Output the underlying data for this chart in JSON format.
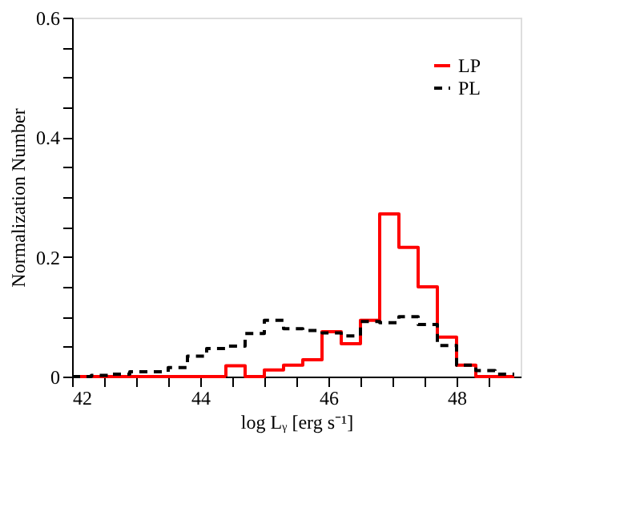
{
  "chart_data": {
    "type": "histogram",
    "xlabel": "log Lᵧ [erg s⁻¹]",
    "ylabel": "Normalization Number",
    "bins": [
      42.0,
      42.3,
      42.6,
      42.9,
      43.2,
      43.5,
      43.8,
      44.1,
      44.4,
      44.7,
      45.0,
      45.3,
      45.6,
      45.9,
      46.2,
      46.5,
      46.8,
      47.1,
      47.4,
      47.7,
      48.0,
      48.3,
      48.6,
      48.9
    ],
    "series": [
      {
        "name": "LP",
        "color": "#ff0000",
        "line_style": "solid",
        "values": [
          0,
          0,
          0,
          0,
          0,
          0,
          0,
          0,
          0.018,
          0,
          0.011,
          0.019,
          0.028,
          0.075,
          0.055,
          0.094,
          0.272,
          0.216,
          0.15,
          0.066,
          0.019,
          0,
          0
        ]
      },
      {
        "name": "PL",
        "color": "#000000",
        "line_style": "dashed",
        "values": [
          0,
          0.002,
          0.004,
          0.008,
          0.008,
          0.015,
          0.034,
          0.047,
          0.051,
          0.072,
          0.094,
          0.08,
          0.077,
          0.073,
          0.068,
          0.092,
          0.09,
          0.1,
          0.087,
          0.052,
          0.019,
          0.01,
          0.004
        ]
      }
    ],
    "xlim": [
      42,
      49
    ],
    "xticks": [
      42,
      {
        "value": 42.5,
        "label": null
      },
      {
        "value": 43,
        "label": null
      },
      {
        "value": 43.5,
        "label": null
      },
      44,
      {
        "value": 44.5,
        "label": null
      },
      {
        "value": 45,
        "label": null
      },
      {
        "value": 45.5,
        "label": null
      },
      46,
      {
        "value": 46.5,
        "label": null
      },
      {
        "value": 47,
        "label": null
      },
      {
        "value": 47.5,
        "label": null
      },
      48,
      {
        "value": 48.5,
        "label": null
      }
    ],
    "ylim": [
      0,
      0.6
    ],
    "yticks": [
      0,
      {
        "value": 0.05,
        "label": null
      },
      {
        "value": 0.1,
        "label": null
      },
      {
        "value": 0.15,
        "label": null
      },
      0.2,
      {
        "value": 0.25,
        "label": null
      },
      {
        "value": 0.3,
        "label": null
      },
      {
        "value": 0.35,
        "label": null
      },
      0.4,
      {
        "value": 0.45,
        "label": null
      },
      {
        "value": 0.5,
        "label": null
      },
      {
        "value": 0.55,
        "label": null
      },
      0.6
    ],
    "grid": false,
    "legend": "top right"
  }
}
